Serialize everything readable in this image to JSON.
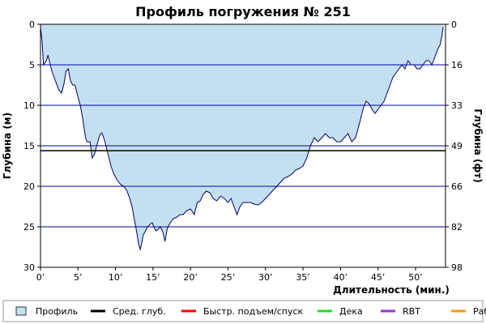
{
  "chart_data": {
    "type": "area",
    "title": "Профиль погружения № 251",
    "xlabel": "Длительность (мин.)",
    "ylabel_left": "Глубина (м)",
    "ylabel_right": "Глубина (фт)",
    "x_unit": "min",
    "xlim": [
      0,
      54
    ],
    "ylim": [
      0,
      30
    ],
    "y_inverted": true,
    "x_ticks": [
      "0’",
      "5’",
      "10’",
      "15’",
      "20’",
      "25’",
      "30’",
      "35’",
      "40’",
      "45’",
      "50’"
    ],
    "y_ticks_left": [
      "0",
      "5",
      "10",
      "15",
      "20",
      "25",
      "30"
    ],
    "y_ticks_right": [
      "0",
      "16",
      "33",
      "49",
      "66",
      "82",
      "98"
    ],
    "grid": "horizontal",
    "average_depth": 15.6,
    "series": [
      {
        "name": "Профиль",
        "color": "#c4e0f0",
        "x": [
          0,
          0.2,
          0.4,
          0.8,
          1.0,
          1.3,
          1.6,
          2.0,
          2.4,
          2.8,
          3.1,
          3.4,
          3.7,
          4.0,
          4.3,
          4.6,
          5.0,
          5.3,
          5.6,
          6.0,
          6.2,
          6.6,
          6.9,
          7.2,
          7.5,
          7.8,
          8.0,
          8.2,
          8.6,
          9.0,
          9.4,
          9.8,
          10.2,
          10.7,
          11.1,
          11.5,
          11.9,
          12.2,
          12.5,
          12.8,
          13.1,
          13.3,
          13.5,
          13.7,
          14.0,
          14.3,
          14.6,
          14.9,
          15.1,
          15.4,
          15.7,
          16.0,
          16.3,
          16.6,
          16.9,
          17.3,
          17.7,
          18.2,
          18.6,
          19.0,
          19.5,
          20.0,
          20.5,
          20.9,
          21.3,
          21.7,
          22.1,
          22.6,
          23.0,
          23.5,
          24.0,
          24.5,
          25.0,
          25.4,
          25.8,
          26.2,
          26.6,
          27.0,
          27.5,
          28.0,
          28.5,
          29.0,
          29.5,
          30.0,
          30.5,
          31.0,
          31.5,
          32.0,
          32.5,
          33.0,
          33.5,
          34.0,
          34.5,
          35.0,
          35.5,
          36.0,
          36.5,
          37.0,
          37.5,
          38.0,
          38.5,
          39.0,
          39.5,
          40.0,
          40.5,
          41.0,
          41.5,
          42.0,
          42.3,
          42.6,
          43.0,
          43.4,
          43.8,
          44.2,
          44.6,
          45.0,
          45.4,
          45.8,
          46.2,
          46.6,
          47.0,
          47.4,
          47.8,
          48.2,
          48.6,
          49.0,
          49.4,
          49.8,
          50.2,
          50.6,
          51.0,
          51.4,
          51.8,
          52.2,
          52.6,
          53.0,
          53.3,
          53.5,
          53.7
        ],
        "y": [
          0.4,
          2.0,
          5.0,
          4.5,
          3.8,
          5.0,
          6.0,
          7.0,
          8.0,
          8.5,
          7.5,
          5.8,
          5.5,
          7.0,
          7.5,
          7.5,
          9.0,
          10.0,
          11.5,
          14.0,
          14.5,
          14.5,
          16.5,
          16.0,
          15.0,
          14.0,
          13.5,
          13.4,
          14.5,
          16.0,
          17.5,
          18.5,
          19.2,
          19.8,
          20.0,
          20.5,
          21.5,
          22.5,
          24.0,
          25.5,
          27.2,
          27.8,
          27.0,
          26.0,
          25.5,
          25.0,
          24.7,
          24.5,
          25.0,
          25.5,
          25.3,
          25.0,
          25.6,
          26.8,
          25.2,
          24.5,
          24.0,
          23.8,
          23.5,
          23.5,
          23.0,
          22.8,
          23.5,
          22.0,
          21.8,
          21.0,
          20.6,
          20.8,
          21.5,
          21.8,
          21.2,
          21.5,
          22.0,
          21.5,
          22.5,
          23.5,
          22.5,
          22.0,
          22.0,
          22.0,
          22.2,
          22.3,
          22.0,
          21.5,
          21.0,
          20.5,
          20.0,
          19.5,
          19.0,
          18.8,
          18.5,
          18.0,
          17.8,
          17.5,
          16.5,
          15.0,
          14.0,
          14.5,
          14.0,
          13.5,
          14.0,
          14.0,
          14.5,
          14.5,
          14.0,
          13.5,
          14.5,
          14.0,
          13.0,
          12.0,
          10.5,
          9.5,
          9.8,
          10.5,
          11.0,
          10.5,
          10.0,
          9.5,
          8.5,
          7.5,
          6.5,
          6.0,
          5.5,
          5.0,
          5.5,
          4.5,
          5.0,
          5.0,
          5.5,
          5.5,
          5.0,
          4.5,
          4.5,
          5.0,
          4.0,
          3.0,
          2.5,
          1.5,
          0.3
        ],
        "line_color": "#000066"
      }
    ],
    "legend": [
      {
        "label": "Профиль",
        "color": "#c4e0f0",
        "kind": "box"
      },
      {
        "label": "Сред. глуб.",
        "color": "#000000",
        "kind": "line"
      },
      {
        "label": "Быстр. подъем/спуск",
        "color": "#ff0000",
        "kind": "line"
      },
      {
        "label": "Дека",
        "color": "#22dd22",
        "kind": "line"
      },
      {
        "label": "RBT",
        "color": "#9933cc",
        "kind": "line"
      },
      {
        "label": "Раб.",
        "color": "#ff9900",
        "kind": "line"
      }
    ],
    "legend_position": "bottom",
    "colors": {
      "grid": "#0000aa",
      "fill": "#c4e0f0",
      "profile_line": "#000066",
      "average": "#000000"
    }
  }
}
